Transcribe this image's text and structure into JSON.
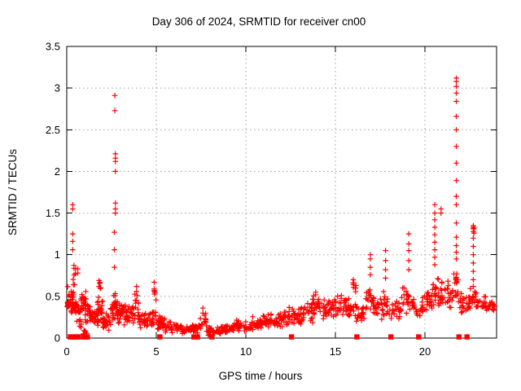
{
  "chart_data": {
    "type": "scatter",
    "title": "Day 306 of 2024, SRMTID for receiver cn00",
    "xlabel": "GPS time / hours",
    "ylabel": "SRMTID / TECUs",
    "xlim": [
      0,
      24
    ],
    "ylim": [
      0,
      3.5
    ],
    "xticks": [
      0,
      5,
      10,
      15,
      20
    ],
    "yticks": [
      0,
      0.5,
      1,
      1.5,
      2,
      2.5,
      3,
      3.5
    ],
    "xtick_labels": [
      "0",
      "5",
      "10",
      "15",
      "20"
    ],
    "ytick_labels": [
      "0",
      "0.5",
      "1",
      "1.5",
      "2",
      "2.5",
      "3",
      "3.5"
    ],
    "grid": true,
    "legend": "none",
    "marker": "plus",
    "zero_marker": "filled-square",
    "colors": {
      "marker": "#ff0000",
      "grid": "#9e9e9e",
      "axis": "#000000",
      "text": "#000000",
      "background": "#ffffff"
    },
    "band_segments_comment": "dense scatter band; each entry = [hour_start, hour_end, n_points, value_min_TECU, value_max_TECU]",
    "band_segments": [
      [
        0.02,
        0.14,
        18,
        0.36,
        0.46
      ],
      [
        0.05,
        0.38,
        12,
        0.44,
        0.66
      ],
      [
        0.12,
        0.5,
        16,
        0.28,
        0.52
      ],
      [
        0.3,
        0.52,
        7,
        0.6,
        0.92
      ],
      [
        0.45,
        0.78,
        22,
        0.24,
        0.5
      ],
      [
        0.55,
        0.82,
        7,
        0.1,
        0.24
      ],
      [
        0.78,
        1.08,
        20,
        0.28,
        0.58
      ],
      [
        0.9,
        1.2,
        6,
        0.04,
        0.12
      ],
      [
        1.02,
        1.38,
        18,
        0.18,
        0.42
      ],
      [
        1.3,
        1.78,
        28,
        0.14,
        0.38
      ],
      [
        1.72,
        2.02,
        20,
        0.2,
        0.52
      ],
      [
        1.78,
        1.98,
        6,
        0.55,
        0.78
      ],
      [
        2.0,
        2.48,
        26,
        0.08,
        0.3
      ],
      [
        2.45,
        2.65,
        12,
        0.15,
        0.45
      ],
      [
        2.6,
        2.82,
        18,
        0.2,
        0.6
      ],
      [
        2.8,
        3.12,
        20,
        0.12,
        0.42
      ],
      [
        3.05,
        3.3,
        10,
        0.25,
        0.5
      ],
      [
        3.2,
        3.62,
        22,
        0.12,
        0.38
      ],
      [
        3.55,
        3.82,
        12,
        0.15,
        0.45
      ],
      [
        3.8,
        4.02,
        10,
        0.28,
        0.6
      ],
      [
        4.0,
        4.52,
        26,
        0.1,
        0.32
      ],
      [
        4.5,
        4.98,
        20,
        0.12,
        0.4
      ],
      [
        4.82,
        5.02,
        5,
        0.42,
        0.62
      ],
      [
        5.0,
        5.52,
        26,
        0.08,
        0.28
      ],
      [
        5.5,
        6.22,
        30,
        0.06,
        0.2
      ],
      [
        6.2,
        7.02,
        34,
        0.04,
        0.16
      ],
      [
        7.0,
        7.48,
        20,
        0.05,
        0.18
      ],
      [
        7.4,
        7.82,
        12,
        0.12,
        0.34
      ],
      [
        7.8,
        8.62,
        32,
        0.02,
        0.13
      ],
      [
        8.6,
        9.32,
        30,
        0.05,
        0.17
      ],
      [
        9.3,
        10.02,
        32,
        0.07,
        0.22
      ],
      [
        10.0,
        10.82,
        34,
        0.08,
        0.26
      ],
      [
        10.8,
        11.62,
        34,
        0.1,
        0.3
      ],
      [
        11.6,
        12.42,
        34,
        0.12,
        0.34
      ],
      [
        12.4,
        13.22,
        34,
        0.14,
        0.4
      ],
      [
        13.2,
        13.82,
        26,
        0.18,
        0.45
      ],
      [
        13.7,
        14.12,
        14,
        0.3,
        0.55
      ],
      [
        14.1,
        14.92,
        32,
        0.2,
        0.46
      ],
      [
        14.9,
        15.62,
        30,
        0.24,
        0.55
      ],
      [
        15.6,
        16.12,
        22,
        0.2,
        0.5
      ],
      [
        15.92,
        16.18,
        7,
        0.48,
        0.68
      ],
      [
        16.15,
        16.72,
        22,
        0.15,
        0.42
      ],
      [
        16.7,
        17.12,
        17,
        0.28,
        0.6
      ],
      [
        17.1,
        17.62,
        20,
        0.2,
        0.5
      ],
      [
        17.6,
        18.02,
        17,
        0.25,
        0.58
      ],
      [
        18.0,
        18.72,
        24,
        0.18,
        0.5
      ],
      [
        18.7,
        19.32,
        22,
        0.28,
        0.62
      ],
      [
        19.3,
        19.92,
        22,
        0.2,
        0.52
      ],
      [
        19.9,
        20.42,
        20,
        0.28,
        0.6
      ],
      [
        20.4,
        20.78,
        17,
        0.35,
        0.78
      ],
      [
        20.75,
        21.32,
        22,
        0.3,
        0.72
      ],
      [
        21.3,
        21.62,
        12,
        0.35,
        0.68
      ],
      [
        21.6,
        21.88,
        14,
        0.45,
        0.85
      ],
      [
        21.85,
        22.45,
        22,
        0.28,
        0.58
      ],
      [
        22.45,
        22.88,
        17,
        0.32,
        0.6
      ],
      [
        22.85,
        23.42,
        20,
        0.3,
        0.52
      ],
      [
        23.4,
        23.92,
        17,
        0.3,
        0.48
      ]
    ],
    "spike_columns_comment": "isolated high-value columns; x = GPS hour, values = TECU readings",
    "spike_columns": [
      {
        "x": 0.33,
        "values": [
          1.6,
          1.55,
          1.25,
          1.16,
          1.06
        ]
      },
      {
        "x": 0.62,
        "values": [
          0.83,
          0.78
        ]
      },
      {
        "x": 2.68,
        "values": [
          2.91,
          2.73
        ]
      },
      {
        "x": 2.72,
        "values": [
          2.21,
          2.16,
          2.12,
          2.0,
          1.62,
          1.55,
          1.5
        ]
      },
      {
        "x": 2.66,
        "values": [
          1.27,
          1.06,
          0.85
        ]
      },
      {
        "x": 3.9,
        "values": [
          0.62,
          0.56
        ]
      },
      {
        "x": 4.88,
        "values": [
          0.67,
          0.59
        ]
      },
      {
        "x": 7.6,
        "values": [
          0.36,
          0.3
        ]
      },
      {
        "x": 13.9,
        "values": [
          0.55,
          0.52
        ]
      },
      {
        "x": 16.0,
        "values": [
          0.7,
          0.64
        ]
      },
      {
        "x": 16.95,
        "values": [
          1.0,
          0.95,
          0.85,
          0.76
        ]
      },
      {
        "x": 17.8,
        "values": [
          1.05,
          0.93,
          0.82,
          0.72
        ]
      },
      {
        "x": 19.1,
        "values": [
          1.25,
          1.13,
          1.05,
          0.93,
          0.82
        ]
      },
      {
        "x": 20.55,
        "values": [
          1.6,
          1.5,
          1.42,
          1.33,
          1.24,
          1.15,
          1.06,
          0.97,
          0.88
        ]
      },
      {
        "x": 20.9,
        "values": [
          1.55,
          1.5
        ]
      },
      {
        "x": 21.75,
        "values": [
          3.12,
          3.08,
          3.02,
          2.94,
          2.84,
          2.66,
          2.5,
          2.3,
          2.1,
          1.89,
          1.7,
          1.6,
          1.38,
          1.21,
          1.11,
          1.03,
          0.95
        ]
      },
      {
        "x": 22.7,
        "values": [
          1.35,
          1.33,
          1.31,
          1.28,
          1.2,
          1.1,
          1.0,
          0.9,
          0.8,
          0.7,
          0.62
        ]
      },
      {
        "x": 22.74,
        "values": [
          1.32,
          1.26
        ]
      }
    ],
    "zero_flag_markers_x_comment": "red filled squares plotted at SRMTID = 0",
    "zero_flag_markers_x": [
      0.2,
      0.3,
      0.42,
      0.55,
      0.65,
      0.95,
      1.05,
      1.15,
      5.2,
      7.1,
      7.3,
      8.1,
      12.55,
      16.2,
      18.1,
      19.65,
      21.9,
      22.35
    ]
  }
}
